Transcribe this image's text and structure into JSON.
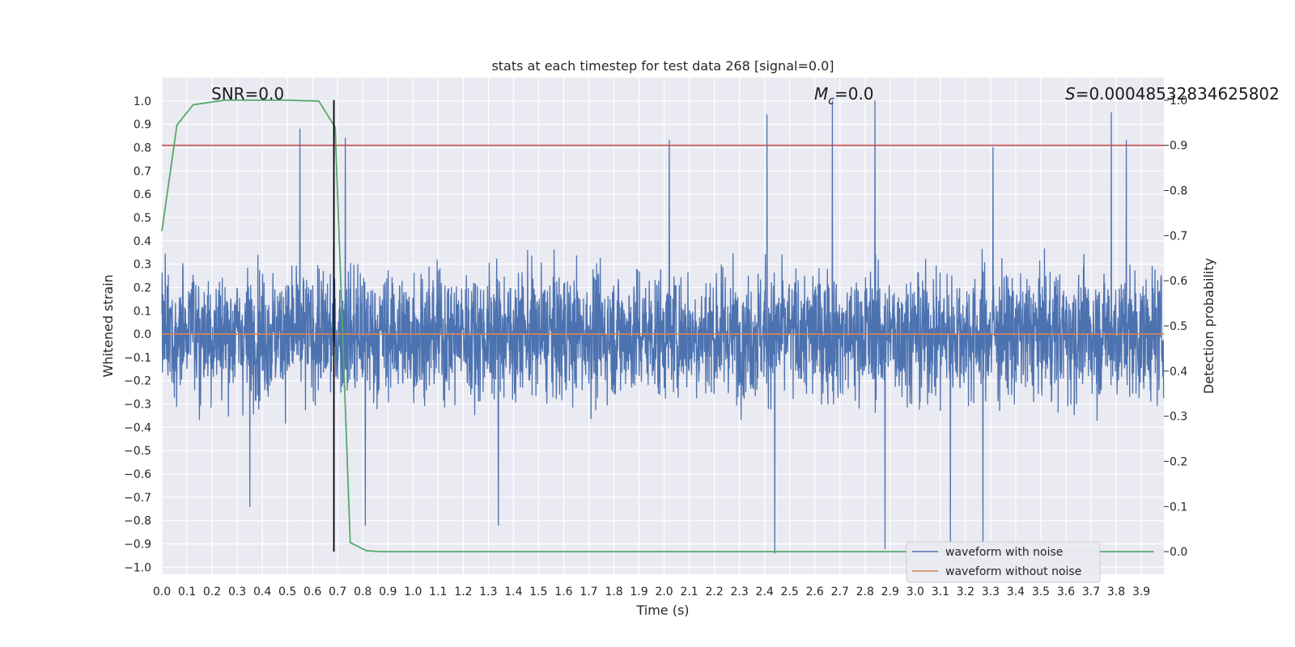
{
  "chart_data": {
    "type": "line",
    "title": "stats at each timestep for test data 268 [signal=0.0]",
    "xlabel": "Time (s)",
    "ylabel": "Whitened strain",
    "y2label": "Detection probability",
    "xlim": [
      0.0,
      3.99
    ],
    "ylim": [
      -1.03,
      1.1
    ],
    "y2lim": [
      -0.05,
      1.05
    ],
    "xticks": [
      0.0,
      0.1,
      0.2,
      0.3,
      0.4,
      0.5,
      0.6,
      0.7,
      0.8,
      0.9,
      1.0,
      1.1,
      1.2,
      1.3,
      1.4,
      1.5,
      1.6,
      1.7,
      1.8,
      1.9,
      2.0,
      2.1,
      2.2,
      2.3,
      2.4,
      2.5,
      2.6,
      2.7,
      2.8,
      2.9,
      3.0,
      3.1,
      3.2,
      3.3,
      3.4,
      3.5,
      3.6,
      3.7,
      3.8,
      3.9
    ],
    "yticks": [
      1.0,
      0.9,
      0.8,
      0.7,
      0.6,
      0.5,
      0.4,
      0.3,
      0.2,
      0.1,
      0.0,
      -0.1,
      -0.2,
      -0.3,
      -0.4,
      -0.5,
      -0.6,
      -0.7,
      -0.8,
      -0.9,
      -1.0
    ],
    "y2ticks": [
      1.0,
      0.9,
      0.8,
      0.7,
      0.6,
      0.5,
      0.4,
      0.3,
      0.2,
      0.1,
      0.0
    ],
    "grid": true,
    "legend_position": "bottom-right",
    "annotations": {
      "snr": "SNR=0.0",
      "mc_symbol": "M",
      "mc_sub": "c",
      "mc_value": "=0.0",
      "s_symbol": "S",
      "s_value": "=0.00048532834625802"
    },
    "threshold_y2": 0.9,
    "marker_x": 0.685,
    "series": [
      {
        "name": "waveform with noise",
        "color": "#4c72b0",
        "kind": "noise",
        "typical_amplitude": 0.2,
        "peak_highs": [
          [
            0.55,
            0.88
          ],
          [
            0.73,
            0.84
          ],
          [
            2.02,
            0.83
          ],
          [
            2.41,
            0.94
          ],
          [
            2.67,
            1.0
          ],
          [
            2.84,
            1.0
          ],
          [
            3.31,
            0.8
          ],
          [
            3.78,
            0.95
          ],
          [
            3.84,
            0.83
          ]
        ],
        "peak_lows": [
          [
            0.35,
            -0.74
          ],
          [
            0.81,
            -0.82
          ],
          [
            1.34,
            -0.82
          ],
          [
            2.44,
            -0.94
          ],
          [
            2.88,
            -0.92
          ],
          [
            3.14,
            -0.93
          ],
          [
            3.27,
            -0.91
          ]
        ]
      },
      {
        "name": "waveform without noise",
        "color": "#dd8452",
        "kind": "flat",
        "value": 0.0
      },
      {
        "name": "detection probability",
        "color": "#55a868",
        "axis": "y2",
        "x": [
          0.0,
          0.06,
          0.125,
          0.25,
          0.375,
          0.5,
          0.625,
          0.69,
          0.75,
          0.815,
          0.875,
          1.0,
          2.0,
          3.0,
          3.95
        ],
        "values": [
          0.71,
          0.945,
          0.99,
          1.0,
          1.0,
          1.0,
          0.998,
          0.94,
          0.02,
          0.002,
          0.0,
          0.0,
          0.0,
          0.0,
          0.0
        ]
      }
    ]
  }
}
